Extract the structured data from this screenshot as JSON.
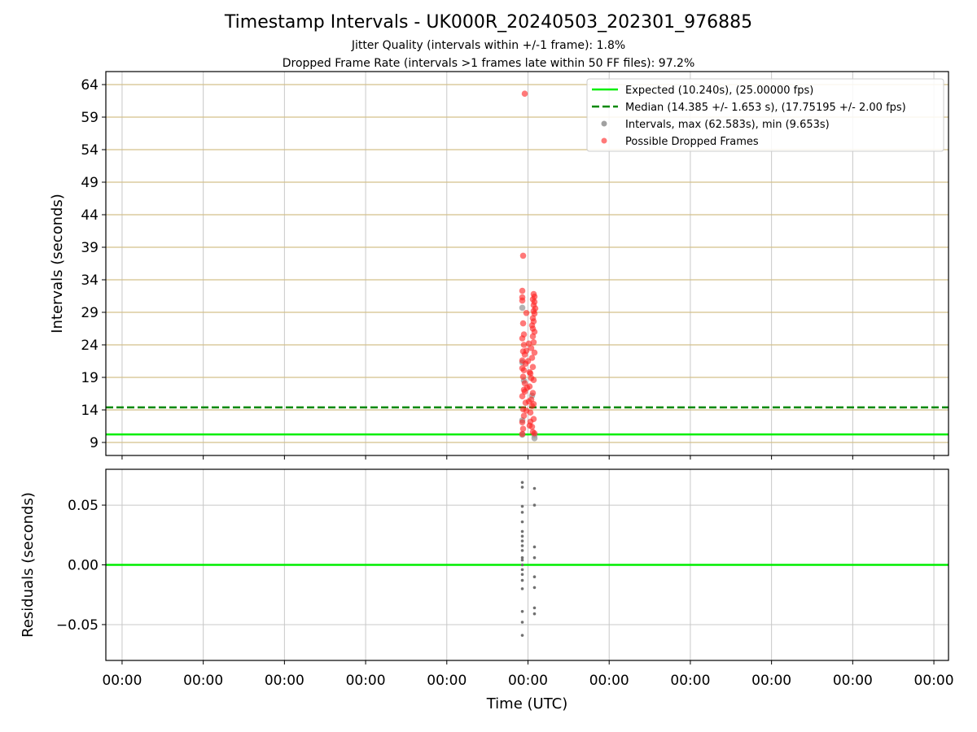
{
  "chart_data": [
    {
      "type": "scatter",
      "title": "Timestamp Intervals - UK000R_20240503_202301_976885",
      "subtitle_lines": [
        "Jitter Quality (intervals within +/-1 frame): 1.8%",
        "Dropped Frame Rate (intervals >1 frames late within 50 FF files): 97.2%"
      ],
      "xlabel": "",
      "ylabel": "Intervals (seconds)",
      "ylim": [
        7,
        66
      ],
      "yticks": [
        9,
        14,
        19,
        24,
        29,
        34,
        39,
        44,
        49,
        54,
        59,
        64
      ],
      "xtick_labels": [
        "00:00",
        "00:00",
        "00:00",
        "00:00",
        "00:00",
        "00:00",
        "00:00",
        "00:00",
        "00:00",
        "00:00",
        "00:00"
      ],
      "grid": true,
      "legend_position": "top-right",
      "legend": [
        "Expected (10.240s), (25.00000 fps)",
        "Median (14.385 +/- 1.653 s), (17.75195 +/- 2.00 fps)",
        "Intervals, max (62.583s), min (9.653s)",
        "Possible Dropped Frames"
      ],
      "expected_interval": 10.24,
      "median_interval": 14.385,
      "series": [
        {
          "name": "Intervals, max (62.583s), min (9.653s)",
          "color": "#a0a0a0",
          "points": [
            [
              -0.07,
              29.7
            ],
            [
              -0.07,
              10.2
            ],
            [
              -0.07,
              12.4
            ],
            [
              0.08,
              9.65
            ],
            [
              0.08,
              10.1
            ],
            [
              -0.05,
              18.5
            ],
            [
              0.05,
              16.2
            ],
            [
              -0.07,
              21.3
            ]
          ]
        },
        {
          "name": "Possible Dropped Frames",
          "color": "#ff2020",
          "points": [
            [
              -0.04,
              62.6
            ],
            [
              -0.06,
              37.7
            ],
            [
              -0.07,
              32.3
            ],
            [
              -0.07,
              31.3
            ],
            [
              -0.07,
              30.8
            ],
            [
              0.07,
              31.8
            ],
            [
              0.08,
              31.4
            ],
            [
              0.06,
              31.0
            ],
            [
              0.08,
              30.6
            ],
            [
              0.07,
              30.1
            ],
            [
              0.09,
              29.6
            ],
            [
              0.07,
              29.2
            ],
            [
              0.08,
              28.8
            ],
            [
              -0.02,
              28.9
            ],
            [
              0.06,
              28.1
            ],
            [
              0.07,
              27.6
            ],
            [
              0.05,
              27.0
            ],
            [
              0.06,
              26.5
            ],
            [
              0.08,
              26.0
            ],
            [
              -0.06,
              27.3
            ],
            [
              -0.05,
              25.6
            ],
            [
              -0.07,
              25.0
            ],
            [
              0.06,
              25.3
            ],
            [
              0.07,
              24.4
            ],
            [
              -0.05,
              24.0
            ],
            [
              0.04,
              23.5
            ],
            [
              -0.06,
              23.0
            ],
            [
              -0.04,
              22.5
            ],
            [
              0.05,
              22.0
            ],
            [
              -0.07,
              21.6
            ],
            [
              -0.03,
              21.1
            ],
            [
              0.06,
              20.6
            ],
            [
              -0.05,
              20.1
            ],
            [
              0.03,
              19.6
            ],
            [
              -0.06,
              19.1
            ],
            [
              0.07,
              18.6
            ],
            [
              -0.04,
              18.1
            ],
            [
              0.02,
              17.6
            ],
            [
              -0.05,
              17.1
            ],
            [
              0.06,
              16.6
            ],
            [
              -0.07,
              16.1
            ],
            [
              0.04,
              15.6
            ],
            [
              -0.03,
              15.1
            ],
            [
              0.05,
              14.6
            ],
            [
              -0.06,
              14.1
            ],
            [
              0.03,
              13.6
            ],
            [
              -0.05,
              13.1
            ],
            [
              0.07,
              12.6
            ],
            [
              -0.07,
              12.1
            ],
            [
              0.02,
              11.6
            ],
            [
              -0.06,
              11.1
            ],
            [
              0.06,
              10.6
            ],
            [
              -0.07,
              10.3
            ],
            [
              0.08,
              10.4
            ],
            [
              -0.02,
              13.9
            ],
            [
              0.01,
              15.3
            ],
            [
              -0.01,
              17.4
            ],
            [
              0.02,
              19.8
            ],
            [
              0.0,
              21.5
            ],
            [
              -0.02,
              23.1
            ],
            [
              0.01,
              24.2
            ],
            [
              0.03,
              12.2
            ],
            [
              -0.04,
              16.8
            ],
            [
              0.04,
              18.9
            ],
            [
              0.08,
              22.8
            ],
            [
              0.07,
              14.9
            ],
            [
              -0.07,
              20.4
            ],
            [
              0.05,
              11.4
            ]
          ]
        }
      ]
    },
    {
      "type": "scatter",
      "title": "",
      "xlabel": "Time (UTC)",
      "ylabel": "Residuals (seconds)",
      "ylim": [
        -0.08,
        0.08
      ],
      "yticks": [
        -0.05,
        0.0,
        0.05
      ],
      "ytick_labels": [
        "−0.05",
        "0.00",
        "0.05"
      ],
      "xtick_labels": [
        "00:00",
        "00:00",
        "00:00",
        "00:00",
        "00:00",
        "00:00",
        "00:00",
        "00:00",
        "00:00",
        "00:00",
        "00:00"
      ],
      "grid": true,
      "reference_line": 0.0,
      "series": [
        {
          "name": "",
          "color": "#707070",
          "points": [
            [
              -0.07,
              0.069
            ],
            [
              -0.07,
              0.065
            ],
            [
              -0.07,
              0.049
            ],
            [
              -0.07,
              0.044
            ],
            [
              -0.07,
              0.036
            ],
            [
              -0.07,
              0.028
            ],
            [
              -0.07,
              0.024
            ],
            [
              -0.07,
              0.02
            ],
            [
              -0.07,
              0.016
            ],
            [
              -0.07,
              0.012
            ],
            [
              -0.07,
              0.006
            ],
            [
              -0.07,
              0.004
            ],
            [
              -0.07,
              0.0
            ],
            [
              -0.07,
              -0.004
            ],
            [
              -0.07,
              -0.008
            ],
            [
              -0.07,
              -0.013
            ],
            [
              -0.07,
              -0.02
            ],
            [
              -0.07,
              -0.039
            ],
            [
              -0.07,
              -0.048
            ],
            [
              -0.07,
              -0.059
            ],
            [
              0.08,
              0.064
            ],
            [
              0.08,
              0.05
            ],
            [
              0.08,
              0.015
            ],
            [
              0.08,
              0.006
            ],
            [
              0.08,
              -0.01
            ],
            [
              0.08,
              -0.019
            ],
            [
              0.08,
              -0.036
            ],
            [
              0.08,
              -0.041
            ]
          ]
        }
      ]
    }
  ]
}
